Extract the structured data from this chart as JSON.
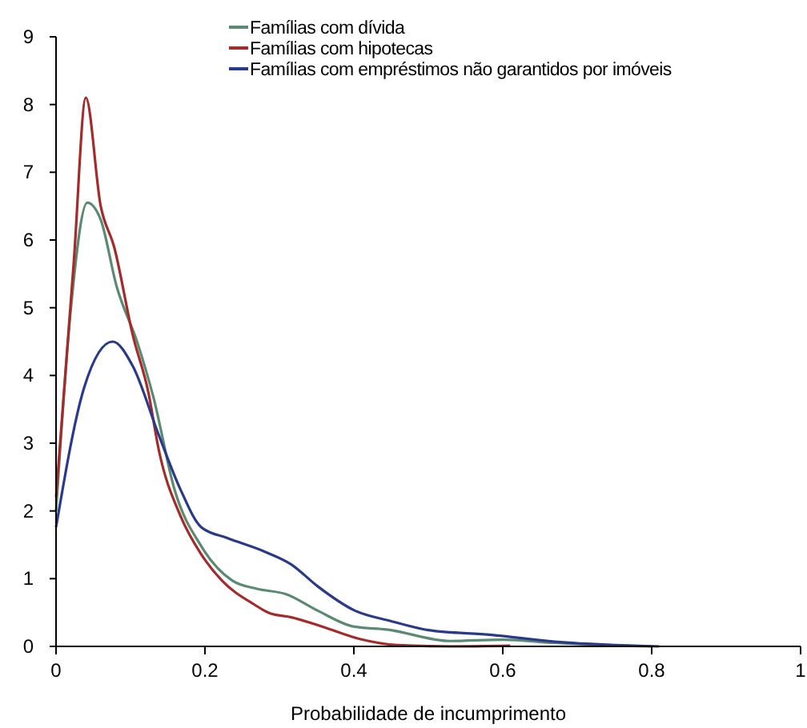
{
  "chart_data": {
    "type": "line",
    "xlabel": "Probabilidade de incumprimento",
    "xlim": [
      0,
      1
    ],
    "xticks": [
      0,
      0.2,
      0.4,
      0.6,
      0.8,
      1
    ],
    "ylim": [
      0,
      9
    ],
    "yticks": [
      0,
      1,
      2,
      3,
      4,
      5,
      6,
      7,
      8,
      9
    ],
    "grid": false,
    "legend": "top right",
    "marker": "none",
    "line_style": "solid",
    "series": [
      {
        "name": "Famílias com dívida",
        "color": "#5a8a72",
        "x": [
          0,
          0.02,
          0.042,
          0.06,
          0.081,
          0.11,
          0.131,
          0.159,
          0.195,
          0.237,
          0.27,
          0.309,
          0.351,
          0.401,
          0.444,
          0.529,
          0.6,
          0.67,
          0.8
        ],
        "values": [
          2.0,
          5.0,
          6.55,
          6.3,
          5.33,
          4.46,
          3.67,
          2.32,
          1.48,
          0.97,
          0.85,
          0.77,
          0.53,
          0.29,
          0.25,
          0.08,
          0.1,
          0.05,
          0
        ]
      },
      {
        "name": "Famílias com hipotecas",
        "color": "#a52a2a",
        "x": [
          0,
          0.024,
          0.04,
          0.06,
          0.078,
          0.103,
          0.124,
          0.138,
          0.167,
          0.195,
          0.223,
          0.266,
          0.287,
          0.316,
          0.358,
          0.408,
          0.458,
          0.53,
          0.61
        ],
        "values": [
          2.2,
          5.7,
          8.1,
          6.5,
          5.9,
          4.6,
          3.75,
          2.9,
          1.93,
          1.36,
          0.97,
          0.62,
          0.49,
          0.43,
          0.29,
          0.11,
          0.02,
          0,
          0.01
        ]
      },
      {
        "name": "Famílias com empréstimos não garantidos por imóveis",
        "color": "#2a3a8a",
        "x": [
          0,
          0.038,
          0.076,
          0.103,
          0.138,
          0.167,
          0.195,
          0.23,
          0.28,
          0.316,
          0.351,
          0.401,
          0.451,
          0.5,
          0.585,
          0.67,
          0.81
        ],
        "values": [
          1.76,
          3.83,
          4.5,
          4.14,
          3.12,
          2.32,
          1.76,
          1.6,
          1.4,
          1.21,
          0.89,
          0.53,
          0.37,
          0.24,
          0.17,
          0.07,
          0
        ]
      }
    ]
  }
}
